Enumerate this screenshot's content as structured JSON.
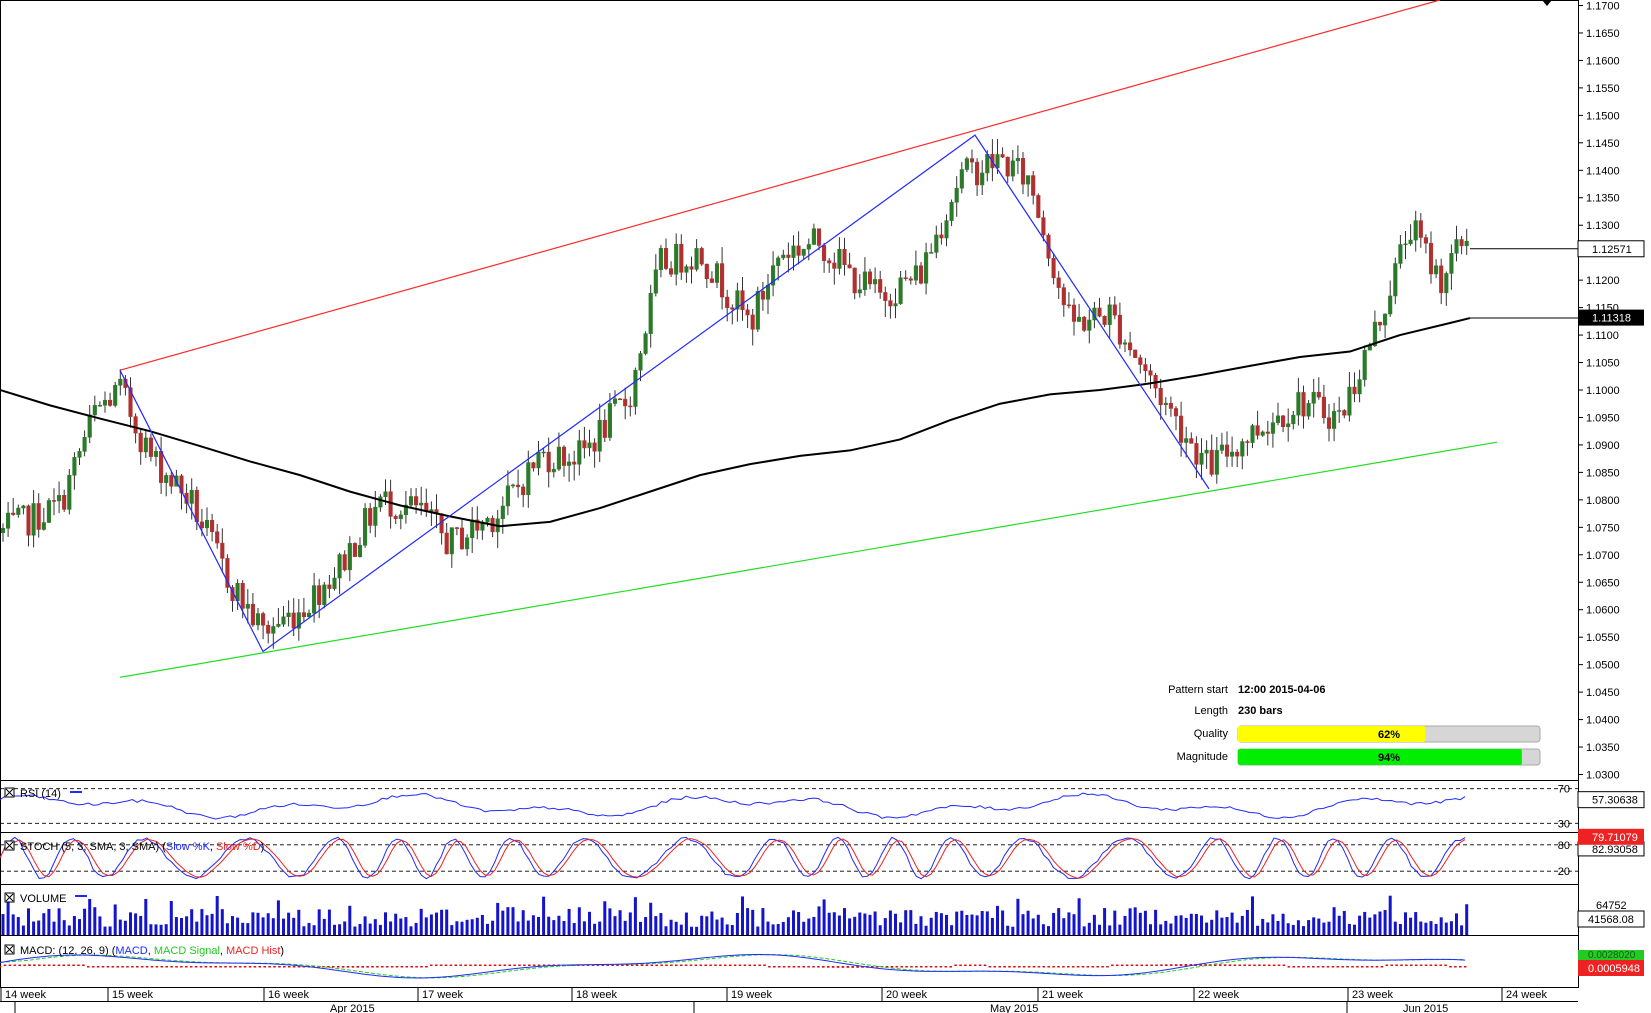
{
  "chart_data": {
    "type": "candlestick",
    "main": {
      "y_ticks": [
        "1.1700",
        "1.1650",
        "1.1600",
        "1.1550",
        "1.1500",
        "1.1450",
        "1.1400",
        "1.1350",
        "1.1300",
        "1.1250",
        "1.1200",
        "1.1150",
        "1.1100",
        "1.1050",
        "1.1000",
        "1.0950",
        "1.0900",
        "1.0850",
        "1.0800",
        "1.0750",
        "1.0700",
        "1.0650",
        "1.0600",
        "1.0550",
        "1.0500",
        "1.0450",
        "1.0400",
        "1.0350",
        "1.0300"
      ],
      "ylim": [
        1.029,
        1.171
      ],
      "x_week_labels": [
        "14 week",
        "15 week",
        "16 week",
        "17 week",
        "18 week",
        "19 week",
        "20 week",
        "21 week",
        "22 week",
        "23 week",
        "24 week"
      ],
      "x_month_labels": [
        "Apr 2015",
        "May 2015",
        "Jun 2015"
      ],
      "last_price": "1.12571",
      "ma_value": "1.11318",
      "moving_average": [
        [
          0,
          1.1
        ],
        [
          50,
          1.0972
        ],
        [
          100,
          1.0948
        ],
        [
          150,
          1.0925
        ],
        [
          200,
          1.0898
        ],
        [
          250,
          1.087
        ],
        [
          300,
          1.0845
        ],
        [
          350,
          1.0815
        ],
        [
          400,
          1.079
        ],
        [
          450,
          1.077
        ],
        [
          500,
          1.0752
        ],
        [
          550,
          1.076
        ],
        [
          600,
          1.0785
        ],
        [
          650,
          1.0815
        ],
        [
          700,
          1.0845
        ],
        [
          750,
          1.0865
        ],
        [
          800,
          1.088
        ],
        [
          850,
          1.089
        ],
        [
          900,
          1.091
        ],
        [
          950,
          1.0945
        ],
        [
          1000,
          1.0975
        ],
        [
          1050,
          1.0992
        ],
        [
          1100,
          1.1
        ],
        [
          1150,
          1.1012
        ],
        [
          1200,
          1.1027
        ],
        [
          1250,
          1.1044
        ],
        [
          1300,
          1.106
        ],
        [
          1350,
          1.107
        ],
        [
          1400,
          1.11
        ],
        [
          1450,
          1.1122
        ],
        [
          1470,
          1.1131
        ]
      ],
      "resistance_line": [
        [
          120,
          1.1036
        ],
        [
          1440,
          1.171
        ]
      ],
      "support_line": [
        [
          120,
          1.0477
        ],
        [
          1497,
          1.0905
        ]
      ],
      "pattern_zigzag": [
        [
          120,
          1.1036
        ],
        [
          263,
          1.0524
        ],
        [
          975,
          1.1464
        ],
        [
          1209,
          1.082
        ]
      ],
      "candle_range_x": [
        0,
        1470
      ]
    },
    "pattern_info": {
      "start_label": "Pattern start",
      "start_value": "12:00 2015-04-06",
      "length_label": "Length",
      "length_value": "230 bars",
      "quality_label": "Quality",
      "quality_value": "62%",
      "quality_fraction": 0.62,
      "magnitude_label": "Magnitude",
      "magnitude_value": "94%",
      "magnitude_fraction": 0.94
    },
    "rsi": {
      "title": "RSI (14)",
      "levels": [
        "70",
        "30"
      ],
      "last_value": "57.30638"
    },
    "stoch": {
      "title_prefix": "STOCH (5, 3, SMA, 3, SMA) (",
      "k_label": "Slow %K",
      "sep": ", ",
      "d_label": "Slow %D",
      "title_suffix": ")",
      "levels": [
        "80",
        "20"
      ],
      "value_k": "79.71079",
      "value_d": "82.93058"
    },
    "volume": {
      "title": "VOLUME",
      "last_value": "41568.08",
      "axis_label": "64752"
    },
    "macd": {
      "title_prefix": "MACD: (12, 26, 9) (",
      "macd_label": "MACD",
      "sep1": ", ",
      "signal_label": "MACD Signal",
      "sep2": ", ",
      "hist_label": "MACD Hist",
      "title_suffix": ")",
      "value_main": "0.0005948",
      "value_hidden": "0.0028020"
    },
    "colors": {
      "bull": "#2a7a2a",
      "bear": "#b03030",
      "resistance": "#ff2a2a",
      "support": "#22dd22",
      "pattern": "#1f2aff",
      "ma": "#000000",
      "quality": "#ffff00",
      "magnitude": "#00ee00",
      "volume": "#1414cc"
    }
  }
}
